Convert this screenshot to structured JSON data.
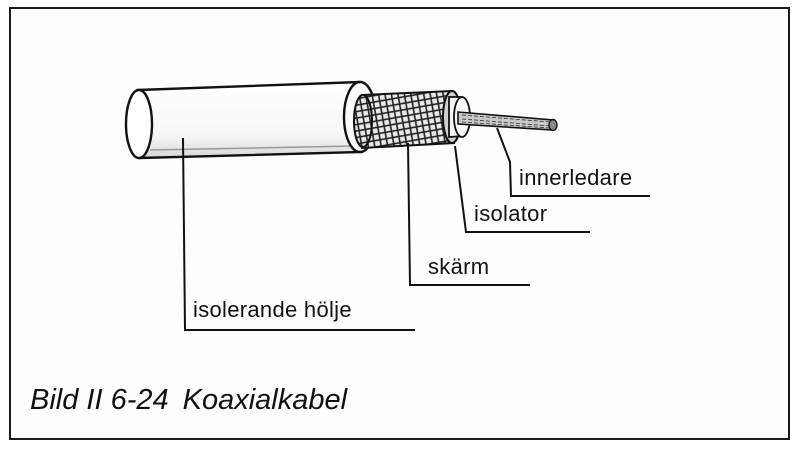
{
  "diagram": {
    "labels": {
      "inner_conductor": "innerledare",
      "insulator": "isolator",
      "shield": "skärm",
      "jacket": "isolerande hölje"
    }
  },
  "caption": {
    "figure_number": "Bild II 6-24",
    "title": "Koaxialkabel"
  }
}
